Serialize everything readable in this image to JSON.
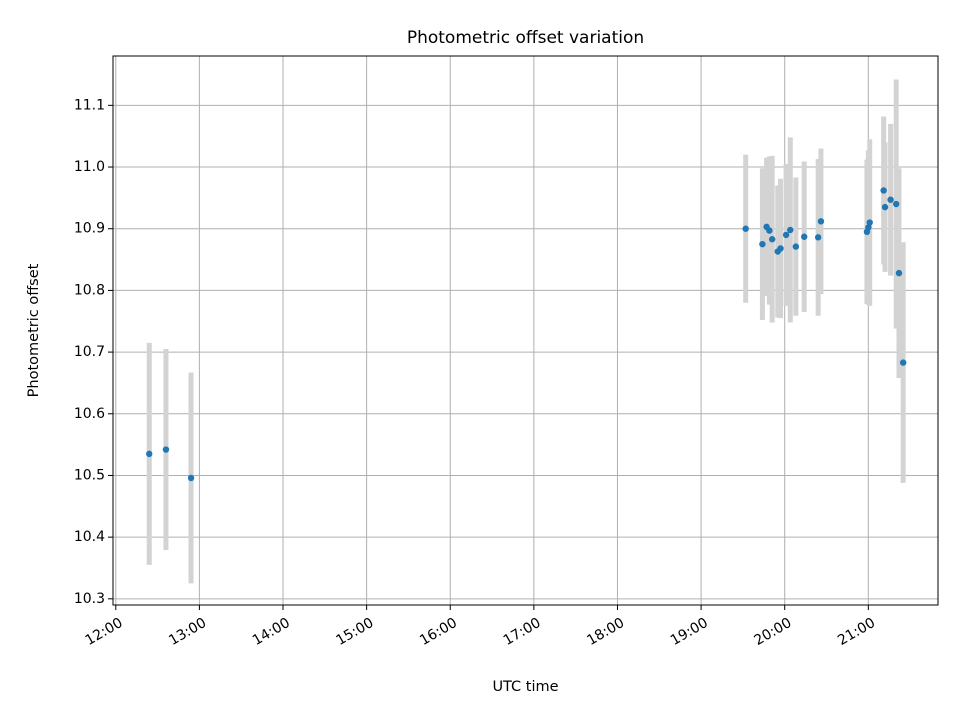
{
  "chart_data": {
    "type": "scatter",
    "title": "Photometric offset variation",
    "xlabel": "UTC time",
    "ylabel": "Photometric offset",
    "x_unit": "hours UTC",
    "xlim": [
      "11:58",
      "21:50"
    ],
    "ylim": [
      10.29,
      11.18
    ],
    "grid": true,
    "x_ticks": [
      {
        "value": "12:00",
        "label": "12:00"
      },
      {
        "value": "13:00",
        "label": "13:00"
      },
      {
        "value": "14:00",
        "label": "14:00"
      },
      {
        "value": "15:00",
        "label": "15:00"
      },
      {
        "value": "16:00",
        "label": "16:00"
      },
      {
        "value": "17:00",
        "label": "17:00"
      },
      {
        "value": "18:00",
        "label": "18:00"
      },
      {
        "value": "19:00",
        "label": "19:00"
      },
      {
        "value": "20:00",
        "label": "20:00"
      },
      {
        "value": "21:00",
        "label": "21:00"
      }
    ],
    "y_ticks": [
      {
        "value": 10.3,
        "label": "10.3"
      },
      {
        "value": 10.4,
        "label": "10.4"
      },
      {
        "value": 10.5,
        "label": "10.5"
      },
      {
        "value": 10.6,
        "label": "10.6"
      },
      {
        "value": 10.7,
        "label": "10.7"
      },
      {
        "value": 10.8,
        "label": "10.8"
      },
      {
        "value": 10.9,
        "label": "10.9"
      },
      {
        "value": 11.0,
        "label": "11.0"
      },
      {
        "value": 11.1,
        "label": "11.1"
      }
    ],
    "marker_color": "#1f77b4",
    "errorbar_color": "#d3d3d3",
    "points": [
      {
        "x": "12:24",
        "y": 10.535,
        "err": 0.18
      },
      {
        "x": "12:36",
        "y": 10.542,
        "err": 0.163
      },
      {
        "x": "12:54",
        "y": 10.496,
        "err": 0.171
      },
      {
        "x": "19:32",
        "y": 10.9,
        "err": 0.12
      },
      {
        "x": "19:44",
        "y": 10.875,
        "err": 0.123
      },
      {
        "x": "19:47",
        "y": 10.903,
        "err": 0.112
      },
      {
        "x": "19:49",
        "y": 10.897,
        "err": 0.12
      },
      {
        "x": "19:51",
        "y": 10.883,
        "err": 0.135
      },
      {
        "x": "19:55",
        "y": 10.863,
        "err": 0.107
      },
      {
        "x": "19:57",
        "y": 10.868,
        "err": 0.113
      },
      {
        "x": "20:01",
        "y": 10.89,
        "err": 0.115
      },
      {
        "x": "20:04",
        "y": 10.898,
        "err": 0.15
      },
      {
        "x": "20:08",
        "y": 10.871,
        "err": 0.112
      },
      {
        "x": "20:14",
        "y": 10.887,
        "err": 0.122
      },
      {
        "x": "20:24",
        "y": 10.886,
        "err": 0.127
      },
      {
        "x": "20:26",
        "y": 10.912,
        "err": 0.118
      },
      {
        "x": "20:59",
        "y": 10.895,
        "err": 0.117
      },
      {
        "x": "21:00",
        "y": 10.902,
        "err": 0.125
      },
      {
        "x": "21:01",
        "y": 10.91,
        "err": 0.135
      },
      {
        "x": "21:11",
        "y": 10.962,
        "err": 0.12
      },
      {
        "x": "21:12",
        "y": 10.935,
        "err": 0.105
      },
      {
        "x": "21:16",
        "y": 10.947,
        "err": 0.123
      },
      {
        "x": "21:20",
        "y": 10.94,
        "err": 0.202
      },
      {
        "x": "21:22",
        "y": 10.828,
        "err": 0.17
      },
      {
        "x": "21:25",
        "y": 10.683,
        "err": 0.195
      }
    ]
  }
}
